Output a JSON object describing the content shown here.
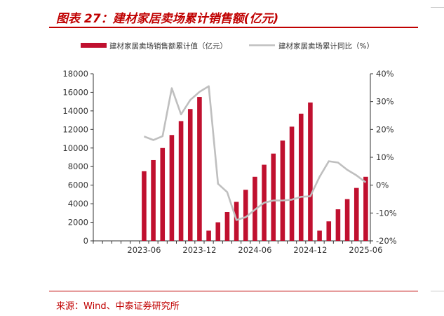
{
  "figure": {
    "title": "图表 27：建材家居卖场累计销售额(亿元)",
    "source": "来源：Wind、中泰证券研究所"
  },
  "colors": {
    "accent": "#c00000",
    "bar": "#c0102f",
    "line": "#bfbfbf"
  },
  "chart_data": {
    "type": "bar",
    "categories": [
      "2023-01",
      "2023-02",
      "2023-03",
      "2023-04",
      "2023-05",
      "2023-06",
      "2023-07",
      "2023-08",
      "2023-09",
      "2023-10",
      "2023-11",
      "2023-12",
      "2024-01",
      "2024-02",
      "2024-03",
      "2024-04",
      "2024-05",
      "2024-06",
      "2024-07",
      "2024-08",
      "2024-09",
      "2024-10",
      "2024-11",
      "2024-12",
      "2025-01",
      "2025-02",
      "2025-03",
      "2025-04",
      "2025-05",
      "2025-06"
    ],
    "x_tick_labels": [
      "2023-06",
      "2023-12",
      "2024-06",
      "2024-12",
      "2025-06"
    ],
    "series": [
      {
        "name": "建材家居卖场销售额累计值（亿元）",
        "axis": "left",
        "chart_type": "bar",
        "values": [
          null,
          null,
          null,
          null,
          null,
          7500,
          8700,
          10000,
          11400,
          12900,
          14200,
          15500,
          1100,
          2000,
          3100,
          4200,
          5500,
          6900,
          8200,
          9400,
          10800,
          12300,
          13700,
          14900,
          1100,
          2100,
          3400,
          4500,
          5700,
          6900
        ]
      },
      {
        "name": "建材家居卖场累计同比（%）",
        "axis": "right",
        "chart_type": "line",
        "values": [
          null,
          null,
          null,
          null,
          null,
          17.5,
          16.2,
          17.6,
          34.8,
          25.4,
          30.6,
          33.5,
          35.5,
          0.5,
          -2.5,
          -12.5,
          -11.5,
          -8.8,
          -6.3,
          -5.5,
          -5.5,
          -5.2,
          -4.2,
          -4.0,
          3.0,
          8.6,
          8.1,
          5.5,
          3.5,
          1.0
        ]
      }
    ],
    "ylim_left": [
      0,
      18000
    ],
    "yticks_left": [
      0,
      2000,
      4000,
      6000,
      8000,
      10000,
      12000,
      14000,
      16000,
      18000
    ],
    "ylim_right": [
      -20,
      40
    ],
    "yticks_right": [
      -20,
      -10,
      0,
      10,
      20,
      30,
      40
    ],
    "ytick_labels_right": [
      "-20%",
      "-10%",
      "0%",
      "10%",
      "20%",
      "30%",
      "40%"
    ],
    "legend_position": "top",
    "grid": false
  }
}
